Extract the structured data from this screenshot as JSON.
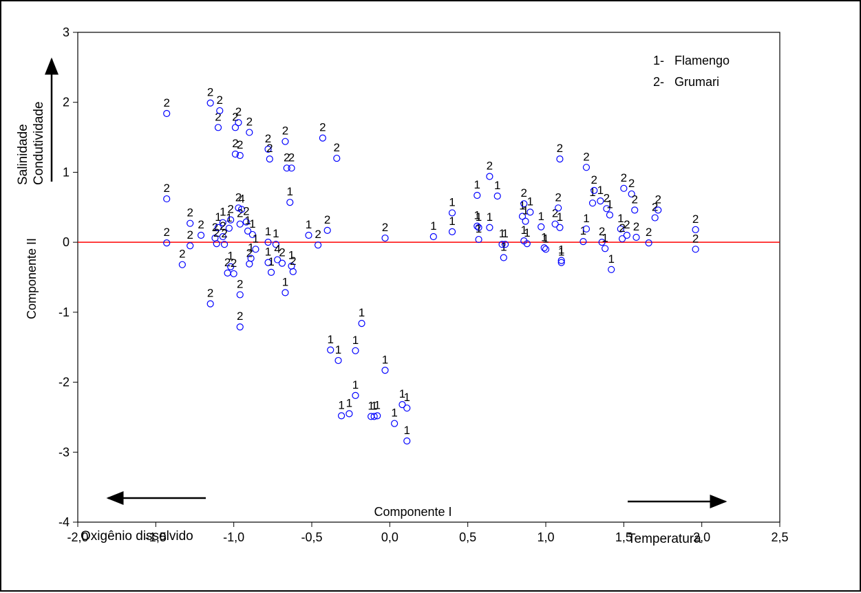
{
  "chart_data": {
    "type": "scatter",
    "xlabel": "Componente I",
    "ylabel": "Componente II",
    "xlim": [
      -2.0,
      2.5
    ],
    "ylim": [
      -4,
      3
    ],
    "xticks": [
      "-2,0",
      "-1,5",
      "-1,0",
      "-0,5",
      "0,0",
      "0,5",
      "1,0",
      "1,5",
      "2,0",
      "2,5"
    ],
    "yticks": [
      "3",
      "2",
      "1",
      "0",
      "-1",
      "-2",
      "-3",
      "-4"
    ],
    "legend": {
      "placement": "top-right",
      "entries": [
        "1-   Flamengo",
        "2-   Grumari"
      ]
    },
    "reference_line": {
      "y": 0,
      "color": "#ff0000"
    },
    "marker_color": "#0000ff",
    "annotations": {
      "left_arrow": "Oxigênio dissolvido",
      "right_arrow": "Temperatura",
      "up_arrow_line1": "Salinidade",
      "up_arrow_line2": "Condutividade"
    },
    "points": [
      {
        "x": -1.43,
        "y": 1.84,
        "label": "2"
      },
      {
        "x": -1.43,
        "y": 0.62,
        "label": "2"
      },
      {
        "x": -1.43,
        "y": -0.01,
        "label": "2"
      },
      {
        "x": -1.33,
        "y": -0.32,
        "label": "2"
      },
      {
        "x": -1.28,
        "y": 0.27,
        "label": "2"
      },
      {
        "x": -1.28,
        "y": -0.05,
        "label": "2"
      },
      {
        "x": -1.21,
        "y": 0.1,
        "label": "2"
      },
      {
        "x": -1.15,
        "y": 1.99,
        "label": "2"
      },
      {
        "x": -1.15,
        "y": -0.88,
        "label": "2"
      },
      {
        "x": -1.12,
        "y": 0.06,
        "label": "2"
      },
      {
        "x": -1.1,
        "y": 1.64,
        "label": "2"
      },
      {
        "x": -1.09,
        "y": 1.88,
        "label": "2"
      },
      {
        "x": -1.1,
        "y": 0.21,
        "label": "1"
      },
      {
        "x": -1.11,
        "y": -0.02,
        "label": "2"
      },
      {
        "x": -1.07,
        "y": 0.28,
        "label": "1"
      },
      {
        "x": -1.07,
        "y": 0.08,
        "label": "2"
      },
      {
        "x": -1.06,
        "y": -0.03,
        "label": "2"
      },
      {
        "x": -1.04,
        "y": -0.44,
        "label": "2"
      },
      {
        "x": -1.03,
        "y": 0.2,
        "label": "1"
      },
      {
        "x": -1.02,
        "y": 0.32,
        "label": "2"
      },
      {
        "x": -1.02,
        "y": -0.35,
        "label": "1"
      },
      {
        "x": -1.0,
        "y": -0.45,
        "label": "2"
      },
      {
        "x": -0.99,
        "y": 1.64,
        "label": "2"
      },
      {
        "x": -0.99,
        "y": 1.26,
        "label": "2"
      },
      {
        "x": -0.97,
        "y": 1.71,
        "label": "2"
      },
      {
        "x": -0.96,
        "y": 1.24,
        "label": "2"
      },
      {
        "x": -0.97,
        "y": 0.49,
        "label": "2"
      },
      {
        "x": -0.96,
        "y": 0.26,
        "label": "2"
      },
      {
        "x": -0.95,
        "y": 0.47,
        "label": "4"
      },
      {
        "x": -0.92,
        "y": 0.29,
        "label": "2"
      },
      {
        "x": -0.96,
        "y": -0.75,
        "label": "2"
      },
      {
        "x": -0.96,
        "y": -1.21,
        "label": "2"
      },
      {
        "x": -0.9,
        "y": 1.57,
        "label": "2"
      },
      {
        "x": -0.91,
        "y": 0.16,
        "label": "1"
      },
      {
        "x": -0.9,
        "y": -0.31,
        "label": "2"
      },
      {
        "x": -0.89,
        "y": -0.23,
        "label": "1"
      },
      {
        "x": -0.88,
        "y": 0.11,
        "label": "1"
      },
      {
        "x": -0.86,
        "y": -0.1,
        "label": "1"
      },
      {
        "x": -0.78,
        "y": 1.33,
        "label": "2"
      },
      {
        "x": -0.77,
        "y": 1.19,
        "label": "2"
      },
      {
        "x": -0.78,
        "y": 0.0,
        "label": "1"
      },
      {
        "x": -0.78,
        "y": -0.29,
        "label": "1"
      },
      {
        "x": -0.76,
        "y": -0.43,
        "label": "1"
      },
      {
        "x": -0.73,
        "y": -0.03,
        "label": "1"
      },
      {
        "x": -0.72,
        "y": -0.25,
        "label": "4"
      },
      {
        "x": -0.69,
        "y": -0.3,
        "label": "2"
      },
      {
        "x": -0.67,
        "y": 1.44,
        "label": "2"
      },
      {
        "x": -0.66,
        "y": 1.06,
        "label": "2"
      },
      {
        "x": -0.63,
        "y": 1.06,
        "label": "2"
      },
      {
        "x": -0.64,
        "y": 0.57,
        "label": "1"
      },
      {
        "x": -0.63,
        "y": -0.34,
        "label": "1"
      },
      {
        "x": -0.62,
        "y": -0.42,
        "label": "2"
      },
      {
        "x": -0.67,
        "y": -0.72,
        "label": "1"
      },
      {
        "x": -0.52,
        "y": 0.1,
        "label": "1"
      },
      {
        "x": -0.46,
        "y": -0.04,
        "label": "2"
      },
      {
        "x": -0.43,
        "y": 1.49,
        "label": "2"
      },
      {
        "x": -0.4,
        "y": 0.17,
        "label": "2"
      },
      {
        "x": -0.34,
        "y": 1.2,
        "label": "2"
      },
      {
        "x": -0.38,
        "y": -1.54,
        "label": "1"
      },
      {
        "x": -0.33,
        "y": -1.69,
        "label": "1"
      },
      {
        "x": -0.31,
        "y": -2.48,
        "label": "1"
      },
      {
        "x": -0.26,
        "y": -2.45,
        "label": "1"
      },
      {
        "x": -0.22,
        "y": -1.55,
        "label": "1"
      },
      {
        "x": -0.22,
        "y": -2.19,
        "label": "1"
      },
      {
        "x": -0.18,
        "y": -1.16,
        "label": "1"
      },
      {
        "x": -0.12,
        "y": -2.49,
        "label": "1"
      },
      {
        "x": -0.1,
        "y": -2.49,
        "label": "1"
      },
      {
        "x": -0.08,
        "y": -2.48,
        "label": "1"
      },
      {
        "x": -0.03,
        "y": 0.06,
        "label": "2"
      },
      {
        "x": -0.03,
        "y": -1.83,
        "label": "1"
      },
      {
        "x": 0.03,
        "y": -2.59,
        "label": "1"
      },
      {
        "x": 0.08,
        "y": -2.32,
        "label": "1"
      },
      {
        "x": 0.11,
        "y": -2.37,
        "label": "1"
      },
      {
        "x": 0.11,
        "y": -2.84,
        "label": "1"
      },
      {
        "x": 0.28,
        "y": 0.08,
        "label": "1"
      },
      {
        "x": 0.4,
        "y": 0.42,
        "label": "1"
      },
      {
        "x": 0.4,
        "y": 0.15,
        "label": "1"
      },
      {
        "x": 0.56,
        "y": 0.67,
        "label": "1"
      },
      {
        "x": 0.56,
        "y": 0.23,
        "label": "1"
      },
      {
        "x": 0.57,
        "y": 0.21,
        "label": "1"
      },
      {
        "x": 0.57,
        "y": 0.04,
        "label": "1"
      },
      {
        "x": 0.64,
        "y": 0.94,
        "label": "2"
      },
      {
        "x": 0.64,
        "y": 0.21,
        "label": "1"
      },
      {
        "x": 0.69,
        "y": 0.66,
        "label": "1"
      },
      {
        "x": 0.72,
        "y": -0.03,
        "label": "1"
      },
      {
        "x": 0.73,
        "y": -0.22,
        "label": "1"
      },
      {
        "x": 0.74,
        "y": -0.03,
        "label": "1"
      },
      {
        "x": 0.85,
        "y": 0.37,
        "label": "1"
      },
      {
        "x": 0.86,
        "y": 0.55,
        "label": "2"
      },
      {
        "x": 0.86,
        "y": 0.02,
        "label": "1"
      },
      {
        "x": 0.87,
        "y": 0.3,
        "label": "1"
      },
      {
        "x": 0.88,
        "y": -0.02,
        "label": "1"
      },
      {
        "x": 0.9,
        "y": 0.43,
        "label": "1"
      },
      {
        "x": 0.97,
        "y": 0.22,
        "label": "1"
      },
      {
        "x": 0.99,
        "y": -0.08,
        "label": "1"
      },
      {
        "x": 1.0,
        "y": -0.1,
        "label": "1"
      },
      {
        "x": 1.06,
        "y": 0.26,
        "label": "2"
      },
      {
        "x": 1.08,
        "y": 0.49,
        "label": "2"
      },
      {
        "x": 1.09,
        "y": 0.21,
        "label": "1"
      },
      {
        "x": 1.09,
        "y": 1.19,
        "label": "2"
      },
      {
        "x": 1.1,
        "y": -0.26,
        "label": "1"
      },
      {
        "x": 1.1,
        "y": -0.29,
        "label": "1"
      },
      {
        "x": 1.24,
        "y": 0.01,
        "label": "1"
      },
      {
        "x": 1.26,
        "y": 1.07,
        "label": "2"
      },
      {
        "x": 1.26,
        "y": 0.19,
        "label": "1"
      },
      {
        "x": 1.3,
        "y": 0.56,
        "label": "1"
      },
      {
        "x": 1.31,
        "y": 0.74,
        "label": "2"
      },
      {
        "x": 1.35,
        "y": 0.59,
        "label": "1"
      },
      {
        "x": 1.36,
        "y": 0.0,
        "label": "2"
      },
      {
        "x": 1.38,
        "y": -0.09,
        "label": "1"
      },
      {
        "x": 1.39,
        "y": 0.48,
        "label": "2"
      },
      {
        "x": 1.41,
        "y": 0.39,
        "label": "1"
      },
      {
        "x": 1.42,
        "y": -0.39,
        "label": "1"
      },
      {
        "x": 1.48,
        "y": 0.19,
        "label": "1"
      },
      {
        "x": 1.49,
        "y": 0.05,
        "label": "2"
      },
      {
        "x": 1.5,
        "y": 0.77,
        "label": "2"
      },
      {
        "x": 1.52,
        "y": 0.1,
        "label": "2"
      },
      {
        "x": 1.55,
        "y": 0.69,
        "label": "2"
      },
      {
        "x": 1.57,
        "y": 0.46,
        "label": "2"
      },
      {
        "x": 1.58,
        "y": 0.07,
        "label": "2"
      },
      {
        "x": 1.66,
        "y": -0.01,
        "label": "2"
      },
      {
        "x": 1.7,
        "y": 0.35,
        "label": "2"
      },
      {
        "x": 1.72,
        "y": 0.46,
        "label": "2"
      },
      {
        "x": 1.96,
        "y": 0.18,
        "label": "2"
      },
      {
        "x": 1.96,
        "y": -0.1,
        "label": "2"
      }
    ]
  }
}
